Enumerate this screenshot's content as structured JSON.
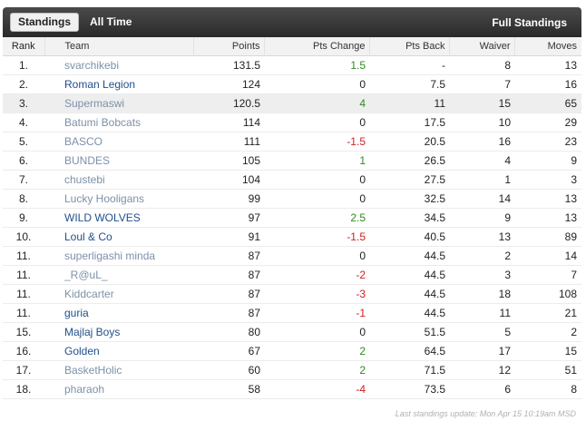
{
  "tabs": [
    {
      "label": "Standings",
      "active": true
    },
    {
      "label": "All Time",
      "active": false
    }
  ],
  "full_standings_label": "Full Standings",
  "columns": {
    "rank": "Rank",
    "team": "Team",
    "points": "Points",
    "pts_change": "Pts Change",
    "pts_back": "Pts Back",
    "waiver": "Waiver",
    "moves": "Moves"
  },
  "rows": [
    {
      "rank": "1.",
      "team": "svarchikebi",
      "points": "131.5",
      "change": "1.5",
      "back": "-",
      "waiver": "8",
      "moves": "13"
    },
    {
      "rank": "2.",
      "team": "Roman Legion",
      "points": "124",
      "change": "0",
      "back": "7.5",
      "waiver": "7",
      "moves": "16"
    },
    {
      "rank": "3.",
      "team": "Supermaswi",
      "points": "120.5",
      "change": "4",
      "back": "11",
      "waiver": "15",
      "moves": "65"
    },
    {
      "rank": "4.",
      "team": "Batumi Bobcats",
      "points": "114",
      "change": "0",
      "back": "17.5",
      "waiver": "10",
      "moves": "29"
    },
    {
      "rank": "5.",
      "team": "BASCO",
      "points": "111",
      "change": "-1.5",
      "back": "20.5",
      "waiver": "16",
      "moves": "23"
    },
    {
      "rank": "6.",
      "team": "BUNDES",
      "points": "105",
      "change": "1",
      "back": "26.5",
      "waiver": "4",
      "moves": "9"
    },
    {
      "rank": "7.",
      "team": "chustebi",
      "points": "104",
      "change": "0",
      "back": "27.5",
      "waiver": "1",
      "moves": "3"
    },
    {
      "rank": "8.",
      "team": "Lucky Hooligans",
      "points": "99",
      "change": "0",
      "back": "32.5",
      "waiver": "14",
      "moves": "13"
    },
    {
      "rank": "9.",
      "team": "WILD WOLVES",
      "points": "97",
      "change": "2.5",
      "back": "34.5",
      "waiver": "9",
      "moves": "13"
    },
    {
      "rank": "10.",
      "team": "Loul & Co",
      "points": "91",
      "change": "-1.5",
      "back": "40.5",
      "waiver": "13",
      "moves": "89"
    },
    {
      "rank": "11.",
      "team": "superligashi minda",
      "points": "87",
      "change": "0",
      "back": "44.5",
      "waiver": "2",
      "moves": "14"
    },
    {
      "rank": "11.",
      "team": "_R@uL_",
      "points": "87",
      "change": "-2",
      "back": "44.5",
      "waiver": "3",
      "moves": "7"
    },
    {
      "rank": "11.",
      "team": "Kiddcarter",
      "points": "87",
      "change": "-3",
      "back": "44.5",
      "waiver": "18",
      "moves": "108"
    },
    {
      "rank": "11.",
      "team": "guria",
      "points": "87",
      "change": "-1",
      "back": "44.5",
      "waiver": "11",
      "moves": "21"
    },
    {
      "rank": "15.",
      "team": "Majlaj Boys",
      "points": "80",
      "change": "0",
      "back": "51.5",
      "waiver": "5",
      "moves": "2"
    },
    {
      "rank": "16.",
      "team": "Golden",
      "points": "67",
      "change": "2",
      "back": "64.5",
      "waiver": "17",
      "moves": "15"
    },
    {
      "rank": "17.",
      "team": "BasketHolic",
      "points": "60",
      "change": "2",
      "back": "71.5",
      "waiver": "12",
      "moves": "51"
    },
    {
      "rank": "18.",
      "team": "pharaoh",
      "points": "58",
      "change": "-4",
      "back": "73.5",
      "waiver": "6",
      "moves": "8"
    }
  ],
  "footer": "Last standings update: Mon Apr 15 10:19am MSD",
  "colors": {
    "positive": "#2e8b1e",
    "negative": "#d02020",
    "link_dark": "#21508c",
    "link_light": "#7d91a8",
    "topbar": "#333333"
  }
}
